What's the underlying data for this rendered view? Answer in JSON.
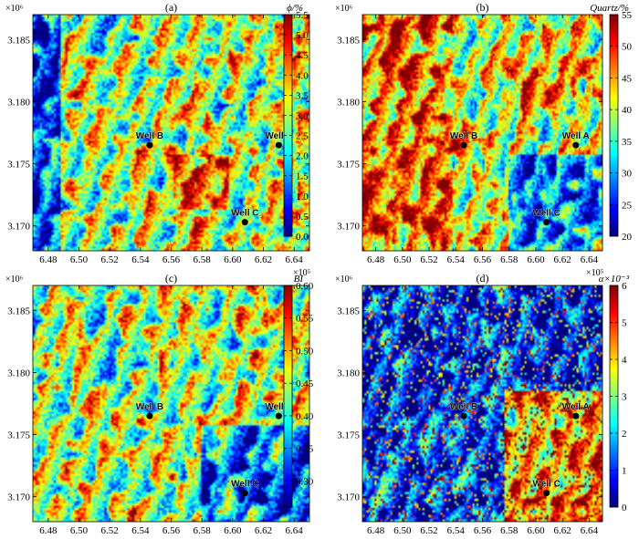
{
  "colormap": [
    "#00007f",
    "#0000ff",
    "#007fff",
    "#00ffff",
    "#7fff7f",
    "#ffff00",
    "#ff7f00",
    "#ff0000",
    "#7f0000"
  ],
  "chart_data": [
    {
      "type": "heatmap",
      "title": "(a)",
      "colorbar": {
        "label_html": "ϕ/%",
        "label": "ϕ/%",
        "ticks": [
          "0.0",
          "0.5",
          "1.0",
          "1.5",
          "2.0",
          "2.5",
          "3.0",
          "3.5",
          "4.0",
          "4.5",
          "5.0",
          "5.5"
        ],
        "range": [
          0.0,
          5.5
        ]
      },
      "xlim": [
        6.47,
        6.65
      ],
      "ylim": [
        3.168,
        3.187
      ],
      "x_ticks": [
        "6.48",
        "6.50",
        "6.52",
        "6.54",
        "6.56",
        "6.58",
        "6.60",
        "6.62",
        "6.64"
      ],
      "y_ticks": [
        "3.170",
        "3.175",
        "3.180",
        "3.185"
      ],
      "x_exponent": "×10⁵",
      "y_exponent": "×10⁶",
      "dominant_level": 0.55,
      "wells": [
        {
          "name": "Well B",
          "x": 6.546,
          "y": 3.1765
        },
        {
          "name": "Well A",
          "x": 6.63,
          "y": 3.1765
        },
        {
          "name": "Well C",
          "x": 6.608,
          "y": 3.1703
        }
      ]
    },
    {
      "type": "heatmap",
      "title": "(b)",
      "colorbar": {
        "label": "Quartz/%",
        "ticks": [
          "20",
          "25",
          "30",
          "35",
          "40",
          "45",
          "50",
          "55"
        ],
        "range": [
          20,
          55
        ]
      },
      "xlim": [
        6.47,
        6.65
      ],
      "ylim": [
        3.168,
        3.187
      ],
      "x_ticks": [
        "6.48",
        "6.50",
        "6.52",
        "6.54",
        "6.56",
        "6.58",
        "6.60",
        "6.62",
        "6.64"
      ],
      "y_ticks": [
        "3.170",
        "3.175",
        "3.180",
        "3.185"
      ],
      "x_exponent": "×10⁵",
      "y_exponent": "×10⁶",
      "dominant_level": 0.6,
      "wells": [
        {
          "name": "Well B",
          "x": 6.546,
          "y": 3.1765
        },
        {
          "name": "Well A",
          "x": 6.63,
          "y": 3.1765
        },
        {
          "name": "Well C",
          "x": 6.608,
          "y": 3.1703
        }
      ]
    },
    {
      "type": "heatmap",
      "title": "(c)",
      "colorbar": {
        "label": "BI",
        "ticks": [
          "0.30",
          "0.35",
          "0.40",
          "0.45",
          "0.50",
          "0.55",
          "0.60"
        ],
        "range": [
          0.26,
          0.6
        ]
      },
      "xlim": [
        6.47,
        6.65
      ],
      "ylim": [
        3.168,
        3.187
      ],
      "x_ticks": [
        "6.48",
        "6.50",
        "6.52",
        "6.54",
        "6.56",
        "6.58",
        "6.60",
        "6.62",
        "6.64"
      ],
      "y_ticks": [
        "3.170",
        "3.175",
        "3.180",
        "3.185"
      ],
      "x_exponent": "×10⁵",
      "y_exponent": "×10⁶",
      "dominant_level": 0.55,
      "wells": [
        {
          "name": "Well B",
          "x": 6.546,
          "y": 3.1765
        },
        {
          "name": "Well A",
          "x": 6.63,
          "y": 3.1765
        },
        {
          "name": "Well C",
          "x": 6.608,
          "y": 3.1703
        }
      ]
    },
    {
      "type": "heatmap",
      "title": "(d)",
      "colorbar": {
        "label": "α×10⁻³",
        "ticks": [
          "0",
          "1",
          "2",
          "3",
          "4",
          "5",
          "6"
        ],
        "range": [
          0,
          6
        ]
      },
      "xlim": [
        6.47,
        6.65
      ],
      "ylim": [
        3.168,
        3.187
      ],
      "x_ticks": [
        "6.48",
        "6.50",
        "6.52",
        "6.54",
        "6.56",
        "6.58",
        "6.60",
        "6.62",
        "6.64"
      ],
      "y_ticks": [
        "3.170",
        "3.175",
        "3.180",
        "3.185"
      ],
      "x_exponent": "×10⁵",
      "y_exponent": "×10⁶",
      "dominant_level": 0.15,
      "wells": [
        {
          "name": "Well B",
          "x": 6.546,
          "y": 3.1765
        },
        {
          "name": "Well A",
          "x": 6.63,
          "y": 3.1765
        },
        {
          "name": "Well C",
          "x": 6.608,
          "y": 3.1703
        }
      ]
    }
  ]
}
